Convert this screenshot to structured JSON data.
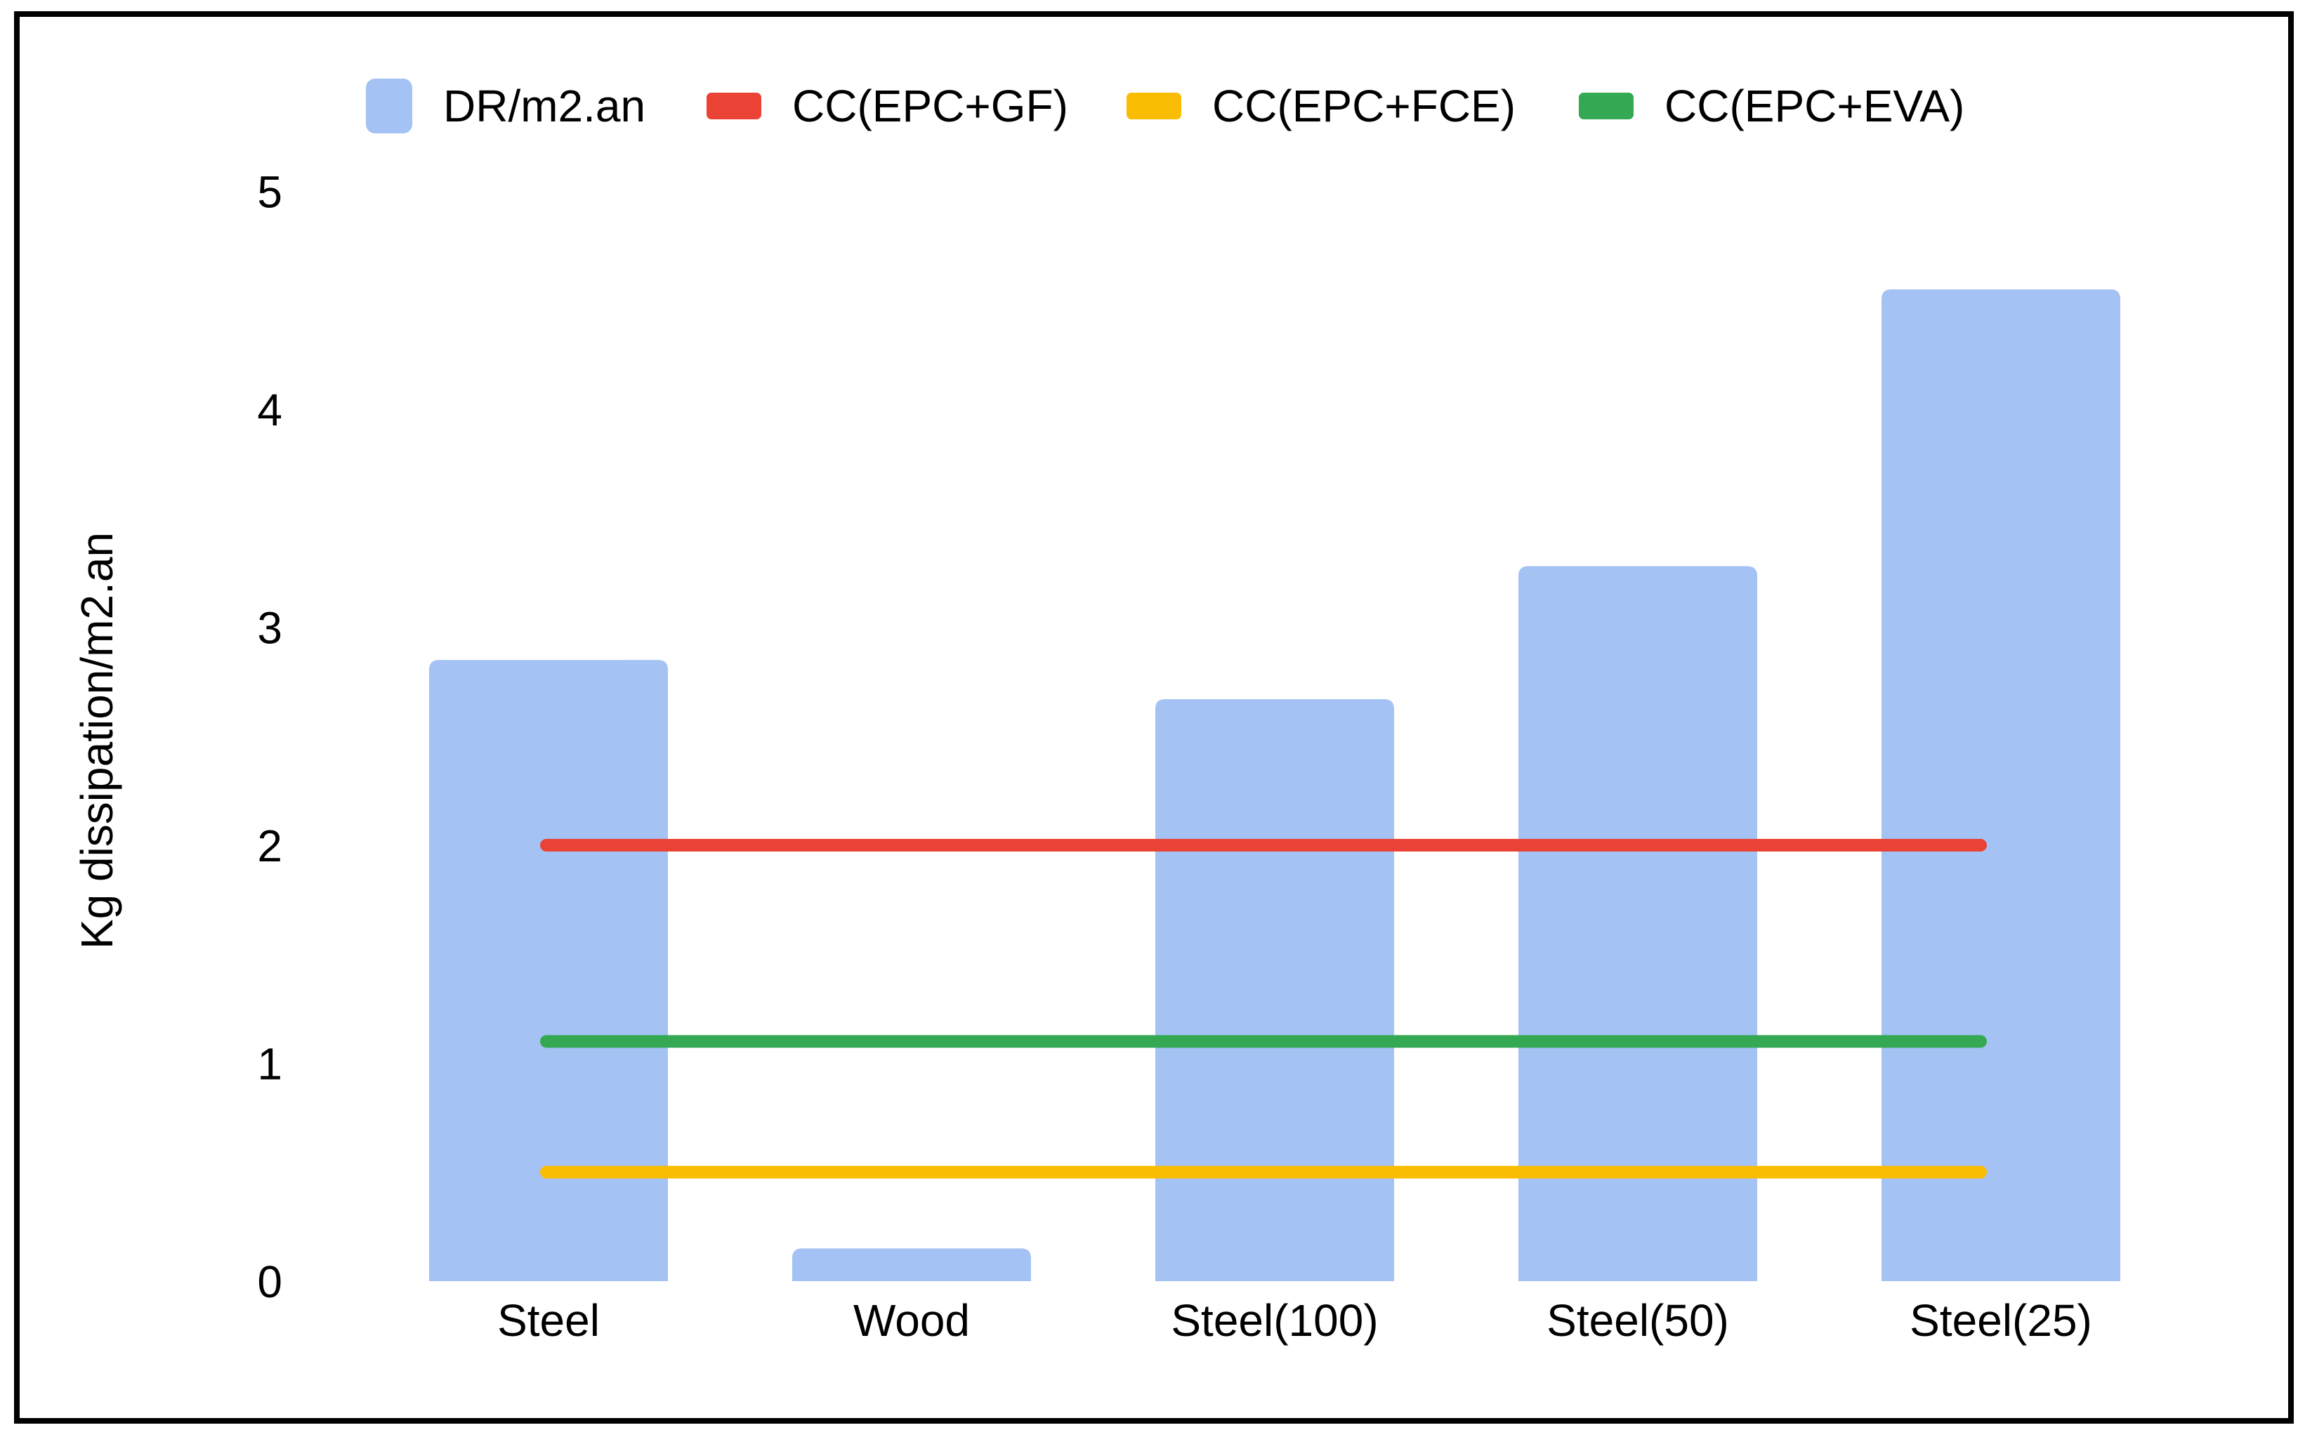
{
  "figure": {
    "background": "#ffffff",
    "border_color": "#000000",
    "text_color": "#000000"
  },
  "chart_data": {
    "type": "bar",
    "title": "",
    "categories": [
      "Steel",
      "Wood",
      "Steel(100)",
      "Steel(50)",
      "Steel(25)"
    ],
    "bar_series": {
      "name": "DR/m2.an",
      "color": "#a4c2f4",
      "values": [
        2.85,
        0.15,
        2.67,
        3.28,
        4.55
      ]
    },
    "lines": [
      {
        "name": "CC(EPC+GF)",
        "color": "#ea4335",
        "value": 2.0
      },
      {
        "name": "CC(EPC+FCE)",
        "color": "#fbbc04",
        "value": 0.5
      },
      {
        "name": "CC(EPC+EVA)",
        "color": "#34a853",
        "value": 1.1
      }
    ],
    "xlabel": "",
    "ylabel": "Kg dissipation/m2.an",
    "ylim": [
      0,
      5
    ],
    "yticks": [
      "0",
      "1",
      "2",
      "3",
      "4",
      "5"
    ],
    "grid": false,
    "legend_position": "top"
  }
}
